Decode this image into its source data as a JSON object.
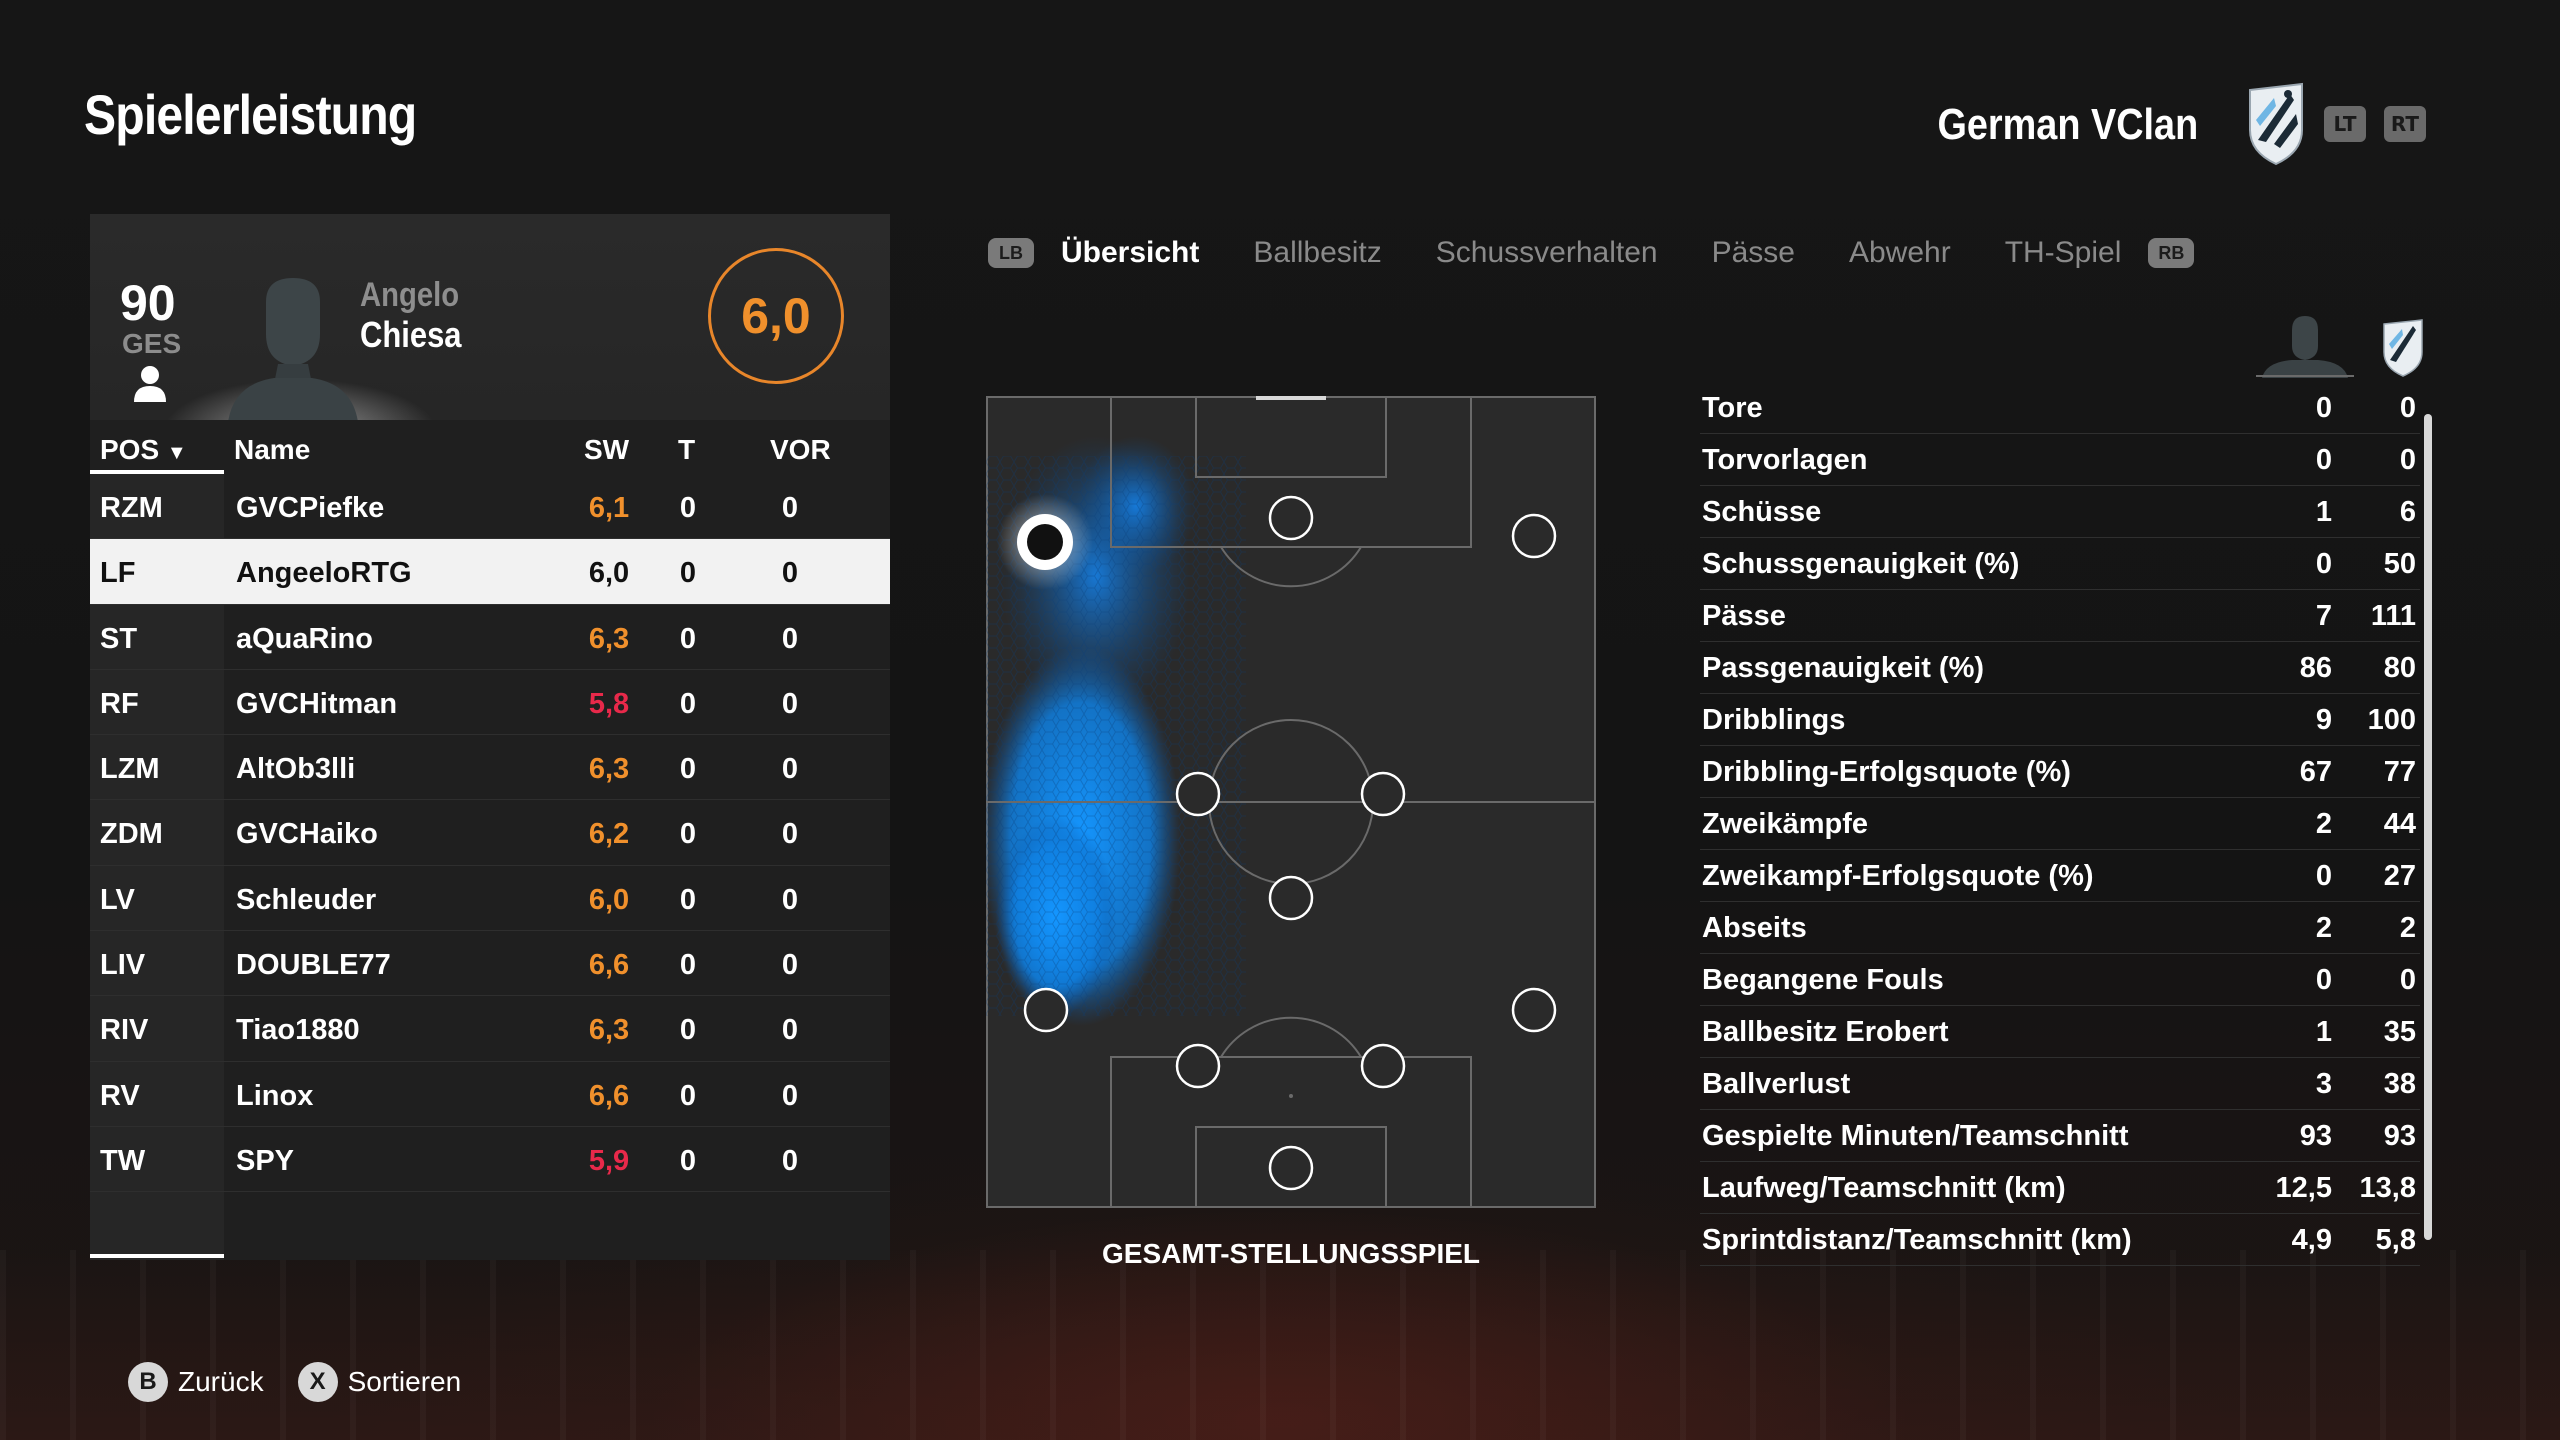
{
  "header": {
    "title": "Spielerleistung",
    "club_name": "German VClan",
    "lt_label": "LT",
    "rt_label": "RT"
  },
  "player": {
    "overall": "90",
    "overall_label": "GES",
    "first_name": "Angelo",
    "last_name": "Chiesa",
    "rating": "6,0"
  },
  "table": {
    "headers": {
      "pos": "POS",
      "name": "Name",
      "sw": "SW",
      "t": "T",
      "vor": "VOR"
    },
    "rows": [
      {
        "pos": "RZM",
        "name": "GVCPiefke",
        "sw": "6,1",
        "t": "0",
        "vor": "0",
        "sw_color": "#f0902c"
      },
      {
        "pos": "LF",
        "name": "AngeeloRTG",
        "sw": "6,0",
        "t": "0",
        "vor": "0",
        "sw_color": "#111111"
      },
      {
        "pos": "ST",
        "name": "aQuaRino",
        "sw": "6,3",
        "t": "0",
        "vor": "0",
        "sw_color": "#f0902c"
      },
      {
        "pos": "RF",
        "name": "GVCHitman",
        "sw": "5,8",
        "t": "0",
        "vor": "0",
        "sw_color": "#e8294a"
      },
      {
        "pos": "LZM",
        "name": "AltOb3lli",
        "sw": "6,3",
        "t": "0",
        "vor": "0",
        "sw_color": "#f0902c"
      },
      {
        "pos": "ZDM",
        "name": "GVCHaiko",
        "sw": "6,2",
        "t": "0",
        "vor": "0",
        "sw_color": "#f0902c"
      },
      {
        "pos": "LV",
        "name": "Schleuder",
        "sw": "6,0",
        "t": "0",
        "vor": "0",
        "sw_color": "#f0902c"
      },
      {
        "pos": "LIV",
        "name": "DOUBLE77",
        "sw": "6,6",
        "t": "0",
        "vor": "0",
        "sw_color": "#f0902c"
      },
      {
        "pos": "RIV",
        "name": "Tiao1880",
        "sw": "6,3",
        "t": "0",
        "vor": "0",
        "sw_color": "#f0902c"
      },
      {
        "pos": "RV",
        "name": "Linox",
        "sw": "6,6",
        "t": "0",
        "vor": "0",
        "sw_color": "#f0902c"
      },
      {
        "pos": "TW",
        "name": "SPY",
        "sw": "5,9",
        "t": "0",
        "vor": "0",
        "sw_color": "#e8294a"
      }
    ]
  },
  "tabs": {
    "lb": "LB",
    "rb": "RB",
    "items": [
      "Übersicht",
      "Ballbesitz",
      "Schussverhalten",
      "Pässe",
      "Abwehr",
      "TH-Spiel"
    ]
  },
  "pitch": {
    "label": "GESAMT-STELLUNGSSPIEL"
  },
  "stats": [
    {
      "label": "Tore",
      "player": "0",
      "club": "0"
    },
    {
      "label": "Torvorlagen",
      "player": "0",
      "club": "0"
    },
    {
      "label": "Schüsse",
      "player": "1",
      "club": "6"
    },
    {
      "label": "Schussgenauigkeit (%)",
      "player": "0",
      "club": "50"
    },
    {
      "label": "Pässe",
      "player": "7",
      "club": "111"
    },
    {
      "label": "Passgenauigkeit (%)",
      "player": "86",
      "club": "80"
    },
    {
      "label": "Dribblings",
      "player": "9",
      "club": "100"
    },
    {
      "label": "Dribbling-Erfolgsquote (%)",
      "player": "67",
      "club": "77"
    },
    {
      "label": "Zweikämpfe",
      "player": "2",
      "club": "44"
    },
    {
      "label": "Zweikampf-Erfolgsquote (%)",
      "player": "0",
      "club": "27"
    },
    {
      "label": "Abseits",
      "player": "2",
      "club": "2"
    },
    {
      "label": "Begangene Fouls",
      "player": "0",
      "club": "0"
    },
    {
      "label": "Ballbesitz Erobert",
      "player": "1",
      "club": "35"
    },
    {
      "label": "Ballverlust",
      "player": "3",
      "club": "38"
    },
    {
      "label": "Gespielte Minuten/Teamschnitt",
      "player": "93",
      "club": "93"
    },
    {
      "label": "Laufweg/Teamschnitt (km)",
      "player": "12,5",
      "club": "13,8"
    },
    {
      "label": "Sprintdistanz/Teamschnitt (km)",
      "player": "4,9",
      "club": "5,8"
    }
  ],
  "footer": {
    "back_glyph": "B",
    "back_label": "Zurück",
    "sort_glyph": "X",
    "sort_label": "Sortieren"
  },
  "icons": {
    "club_crest": "club-crest-icon",
    "player_silhouette": "player-silhouette-icon",
    "person": "person-icon"
  }
}
